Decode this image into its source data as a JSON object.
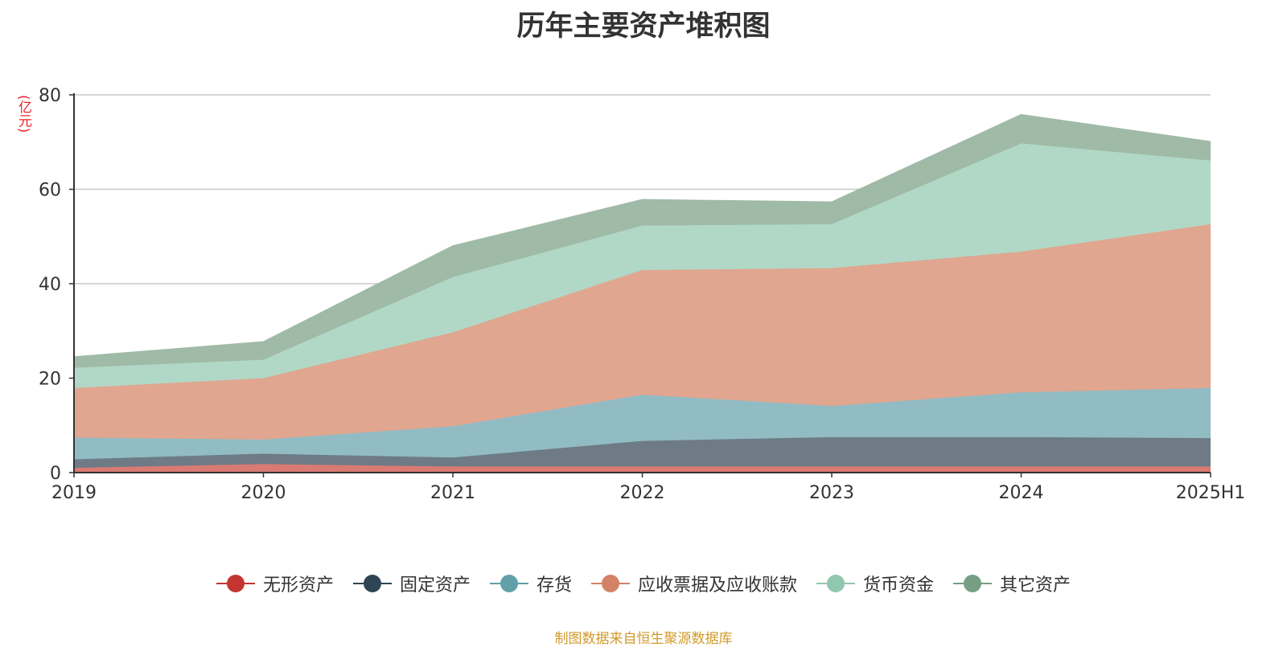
{
  "chart_data": {
    "type": "area",
    "stacked": true,
    "title": "历年主要资产堆积图",
    "ylabel": "(亿元)",
    "source": "制图数据来自恒生聚源数据库",
    "x": [
      "2019",
      "2020",
      "2021",
      "2022",
      "2023",
      "2024",
      "2025H1"
    ],
    "ylim": [
      0,
      80
    ],
    "yticks": [
      "0",
      "20",
      "40",
      "60",
      "80"
    ],
    "grid": true,
    "legend_position": "bottom",
    "series": [
      {
        "name": "无形资产",
        "color": "#c23531",
        "fill": "#d97a73",
        "values": [
          1.0,
          1.8,
          1.3,
          1.3,
          1.3,
          1.3,
          1.3
        ]
      },
      {
        "name": "固定资产",
        "color": "#2f4554",
        "fill": "#6e7b86",
        "values": [
          1.8,
          2.2,
          1.9,
          5.4,
          6.2,
          6.2,
          6.0
        ]
      },
      {
        "name": "存货",
        "color": "#61a0a8",
        "fill": "#91bcc3",
        "values": [
          4.6,
          3.0,
          6.6,
          9.8,
          6.6,
          9.5,
          10.6
        ]
      },
      {
        "name": "应收票据及应收账款",
        "color": "#d48265",
        "fill": "#e0a690",
        "values": [
          10.5,
          13.0,
          19.9,
          26.4,
          29.2,
          29.8,
          34.7
        ]
      },
      {
        "name": "货币资金",
        "color": "#91c7ae",
        "fill": "#b1d8c6",
        "values": [
          4.3,
          3.9,
          11.7,
          9.4,
          9.3,
          22.9,
          13.5
        ]
      },
      {
        "name": "其它资产",
        "color": "#749f83",
        "fill": "#9fba a6",
        "values": [
          2.3,
          3.8,
          6.6,
          5.5,
          4.7,
          6.1,
          4.0
        ]
      }
    ]
  }
}
